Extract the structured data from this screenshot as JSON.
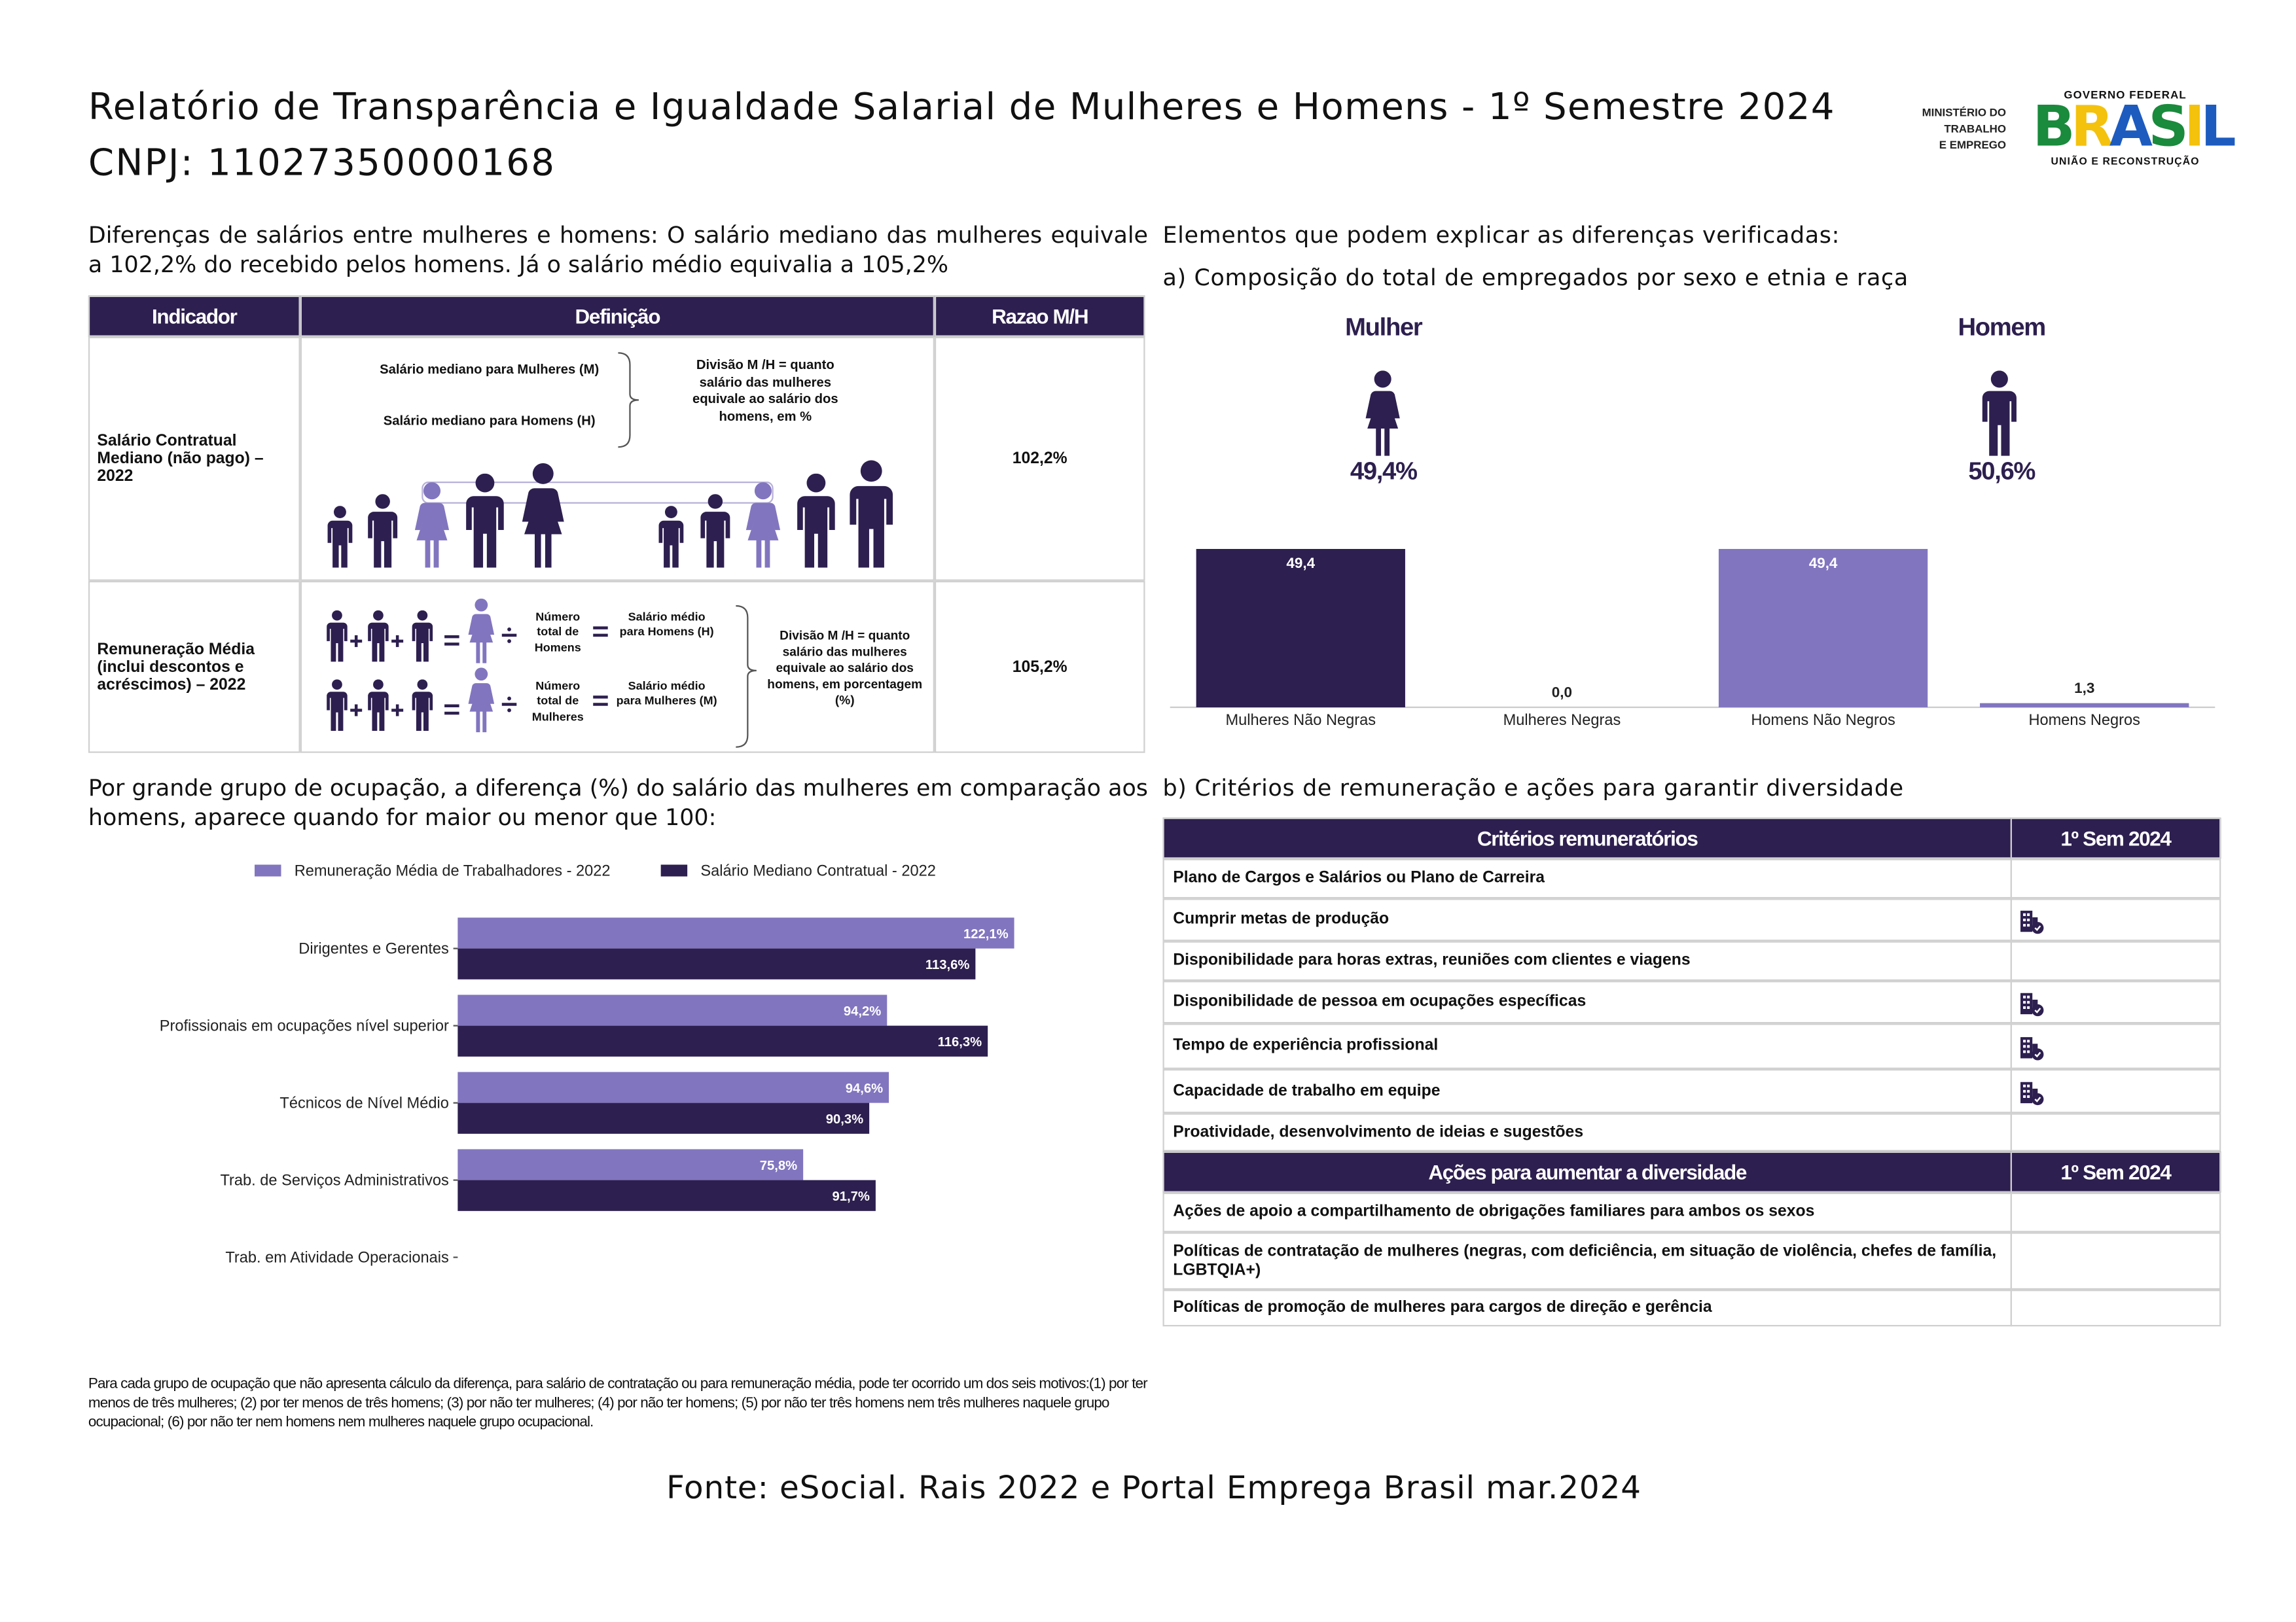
{
  "header": {
    "title": "Relatório de Transparência e Igualdade Salarial de Mulheres e Homens - 1º Semestre 2024",
    "cnpj": "CNPJ: 11027350000168",
    "ministry": [
      "MINISTÉRIO DO",
      "TRABALHO",
      "E EMPREGO"
    ],
    "government": "GOVERNO FEDERAL",
    "brand": "BRASIL",
    "slogan": "UNIÃO E RECONSTRUÇÃO"
  },
  "intro": "Diferenças de salários entre mulheres e homens: O salário mediano das mulheres equivale a 102,2% do recebido pelos homens. Já o salário médio equivalia a 105,2%",
  "indicator_table": {
    "headers": [
      "Indicador",
      "Definição",
      "Razao M/H"
    ],
    "rows": [
      {
        "indicator": "Salário Contratual Mediano (não pago) – 2022",
        "ratio": "102,2%",
        "terms": [
          "Salário mediano para Mulheres (M)",
          "Salário mediano para Homens (H)"
        ],
        "explanation": "Divisão M /H = quanto salário das mulheres equivale ao salário dos homens, em %"
      },
      {
        "indicator": "Remuneração Média (inclui descontos e acréscimos) – 2022",
        "ratio": "105,2%",
        "terms": [
          "Número total de Homens",
          "Salário médio para Homens (H)",
          "Número total de Mulheres",
          "Salário médio para Mulheres (M)"
        ],
        "explanation": "Divisão M /H = quanto salário das mulheres equivale ao salário dos homens, em porcentagem (%)"
      }
    ]
  },
  "composition": {
    "heading": "Elementos que podem explicar as diferenças verificadas:",
    "subheading": "a) Composição do total de empregados por sexo e etnia e raça",
    "genders": [
      {
        "label": "Mulher",
        "share": "49,4%"
      },
      {
        "label": "Homem",
        "share": "50,6%"
      }
    ]
  },
  "chart_data": [
    {
      "type": "bar",
      "categories": [
        "Mulheres Não Negras",
        "Mulheres Negras",
        "Homens Não Negros",
        "Homens Negros"
      ],
      "values": [
        49.4,
        0.0,
        49.4,
        1.3
      ],
      "value_labels": [
        "49,4",
        "0,0",
        "49,4",
        "1,3"
      ],
      "colors": [
        "#2d1f4f",
        "#2d1f4f",
        "#8275bf",
        "#8275bf"
      ],
      "ylim": [
        0,
        50
      ]
    },
    {
      "type": "barh",
      "title": "Por grande grupo de ocupação, a diferença (%) do salário das mulheres em comparação aos homens, aparece quando for maior ou menor que 100:",
      "categories": [
        "Dirigentes e Gerentes",
        "Profissionais em ocupações nível superior",
        "Técnicos de Nível Médio",
        "Trab. de Serviços Administrativos",
        "Trab. em Atividade Operacionais"
      ],
      "series": [
        {
          "name": "Remuneração Média de Trabalhadores - 2022",
          "color": "#8275bf",
          "values": [
            122.1,
            94.2,
            94.6,
            75.8,
            null
          ],
          "value_labels": [
            "122,1%",
            "94,2%",
            "94,6%",
            "75,8%",
            null
          ]
        },
        {
          "name": "Salário Mediano Contratual - 2022",
          "color": "#2d1f4f",
          "values": [
            113.6,
            116.3,
            90.3,
            91.7,
            null
          ],
          "value_labels": [
            "113,6%",
            "116,3%",
            "90,3%",
            "91,7%",
            null
          ]
        }
      ],
      "xlim": [
        0,
        145
      ],
      "legend": "top"
    }
  ],
  "criteria": {
    "heading": "b) Critérios de remuneração e ações para garantir diversidade",
    "sections": [
      {
        "headers": [
          "Critérios remuneratórios",
          "1º Sem 2024"
        ],
        "rows": [
          {
            "label": "Plano de Cargos e Salários ou Plano de Carreira",
            "checked": false
          },
          {
            "label": "Cumprir metas de produção",
            "checked": true
          },
          {
            "label": "Disponibilidade para horas extras, reuniões com clientes e viagens",
            "checked": false
          },
          {
            "label": "Disponibilidade de pessoa em ocupações específicas",
            "checked": true
          },
          {
            "label": "Tempo de experiência profissional",
            "checked": true
          },
          {
            "label": "Capacidade de trabalho em equipe",
            "checked": true
          },
          {
            "label": "Proatividade, desenvolvimento de ideias e sugestões",
            "checked": false
          }
        ]
      },
      {
        "headers": [
          "Ações para aumentar a diversidade",
          "1º Sem 2024"
        ],
        "rows": [
          {
            "label": "Ações de apoio a compartilhamento de obrigações familiares para ambos os sexos",
            "checked": false
          },
          {
            "label": "Políticas de contratação de mulheres (negras, com deficiência, em situação de violência, chefes de família, LGBTQIA+)",
            "checked": false
          },
          {
            "label": "Políticas de promoção de mulheres para cargos de direção e gerência",
            "checked": false
          }
        ]
      }
    ]
  },
  "footnote": "Para cada grupo de ocupação que não apresenta cálculo da diferença, para salário de contratação ou para remuneração média, pode ter ocorrido um dos seis motivos:(1) por ter menos de três mulheres; (2) por ter menos de três homens; (3) por não ter mulheres; (4) por não ter homens; (5) por não ter três homens nem três mulheres naquele grupo ocupacional; (6) por não ter nem homens nem mulheres naquele grupo ocupacional.",
  "source": "Fonte: eSocial. Rais 2022 e Portal Emprega Brasil mar.2024"
}
